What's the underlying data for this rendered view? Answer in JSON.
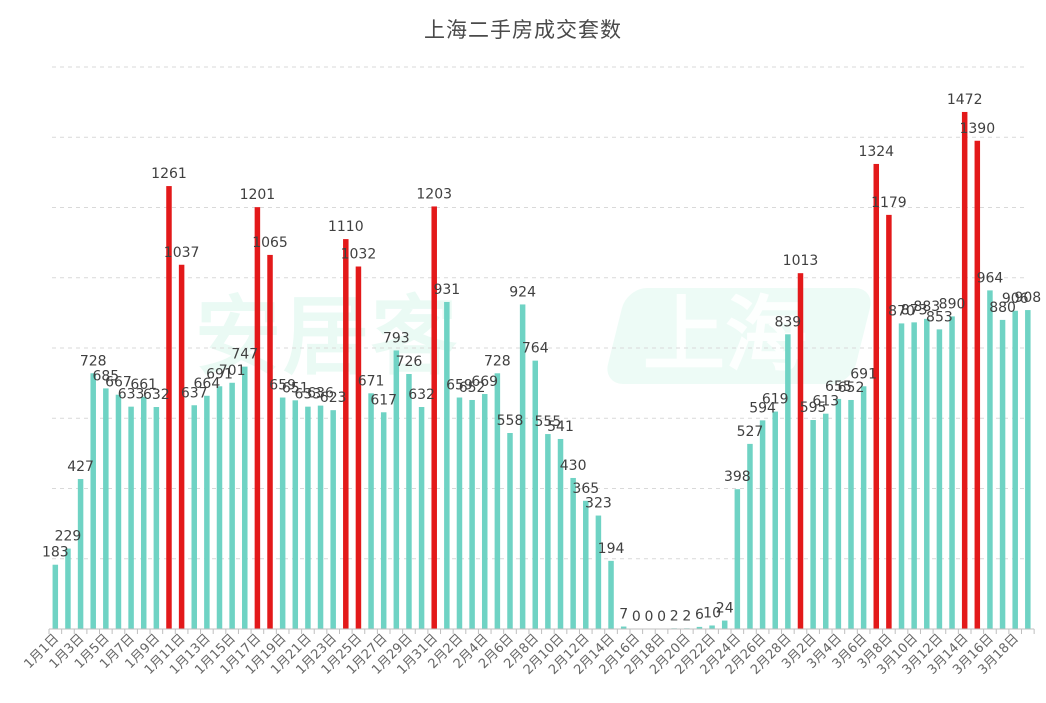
{
  "chart_data": {
    "type": "bar",
    "title": "上海二手房成交套数",
    "watermark": {
      "left_text": "安居客",
      "right_text": "上海"
    },
    "colors": {
      "normal": "#6fd3c4",
      "highlight": "#e3191a",
      "grid": "#d9d9d9",
      "axis": "#bfbfbf",
      "label": "#404040"
    },
    "ylim": [
      0,
      1600
    ],
    "grid": "dashed horizontal",
    "categories": [
      "1月1日",
      "1月2日",
      "1月3日",
      "1月4日",
      "1月5日",
      "1月6日",
      "1月7日",
      "1月8日",
      "1月9日",
      "1月10日",
      "1月11日",
      "1月12日",
      "1月13日",
      "1月14日",
      "1月15日",
      "1月16日",
      "1月17日",
      "1月18日",
      "1月19日",
      "1月20日",
      "1月21日",
      "1月22日",
      "1月23日",
      "1月24日",
      "1月25日",
      "1月26日",
      "1月27日",
      "1月28日",
      "1月29日",
      "1月30日",
      "1月31日",
      "2月1日",
      "2月2日",
      "2月3日",
      "2月4日",
      "2月5日",
      "2月6日",
      "2月7日",
      "2月8日",
      "2月9日",
      "2月10日",
      "2月11日",
      "2月12日",
      "2月13日",
      "2月14日",
      "2月15日",
      "2月16日",
      "2月17日",
      "2月18日",
      "2月19日",
      "2月20日",
      "2月21日",
      "2月22日",
      "2月23日",
      "2月24日",
      "2月25日",
      "2月26日",
      "2月27日",
      "2月28日",
      "3月1日",
      "3月2日",
      "3月3日",
      "3月4日",
      "3月5日",
      "3月6日",
      "3月7日",
      "3月8日",
      "3月9日",
      "3月10日",
      "3月11日",
      "3月12日",
      "3月13日",
      "3月14日",
      "3月15日",
      "3月16日",
      "3月17日",
      "3月18日",
      "3月19日"
    ],
    "tick_labels": [
      "1月1日",
      "1月3日",
      "1月5日",
      "1月7日",
      "1月9日",
      "1月11日",
      "1月13日",
      "1月15日",
      "1月17日",
      "1月19日",
      "1月21日",
      "1月23日",
      "1月25日",
      "1月27日",
      "1月29日",
      "1月31日",
      "2月2日",
      "2月4日",
      "2月6日",
      "2月8日",
      "2月10日",
      "2月12日",
      "2月14日",
      "2月16日",
      "2月18日",
      "2月20日",
      "2月22日",
      "2月24日",
      "2月26日",
      "2月28日",
      "3月2日",
      "3月4日",
      "3月6日",
      "3月8日",
      "3月10日",
      "3月12日",
      "3月14日",
      "3月16日",
      "3月18日"
    ],
    "values": [
      183,
      229,
      427,
      728,
      685,
      667,
      633,
      661,
      632,
      1261,
      1037,
      637,
      664,
      691,
      701,
      747,
      1201,
      1065,
      659,
      651,
      633,
      636,
      623,
      1110,
      1032,
      671,
      617,
      793,
      726,
      632,
      1203,
      931,
      659,
      652,
      669,
      728,
      558,
      924,
      764,
      555,
      541,
      430,
      365,
      323,
      194,
      7,
      0,
      0,
      0,
      2,
      2,
      6,
      10,
      24,
      398,
      527,
      594,
      619,
      839,
      1013,
      595,
      613,
      655,
      652,
      691,
      1324,
      1179,
      870,
      873,
      883,
      853,
      890,
      1472,
      1390,
      964,
      880,
      906,
      908
    ],
    "highlight": [
      false,
      false,
      false,
      false,
      false,
      false,
      false,
      false,
      false,
      true,
      true,
      false,
      false,
      false,
      false,
      false,
      true,
      true,
      false,
      false,
      false,
      false,
      false,
      true,
      true,
      false,
      false,
      false,
      false,
      false,
      true,
      false,
      false,
      false,
      false,
      false,
      false,
      false,
      false,
      false,
      false,
      false,
      false,
      false,
      false,
      false,
      false,
      false,
      false,
      false,
      false,
      false,
      false,
      false,
      false,
      false,
      false,
      false,
      false,
      true,
      false,
      false,
      false,
      false,
      false,
      true,
      true,
      false,
      false,
      false,
      false,
      false,
      true,
      true,
      false,
      false,
      false,
      false
    ]
  }
}
